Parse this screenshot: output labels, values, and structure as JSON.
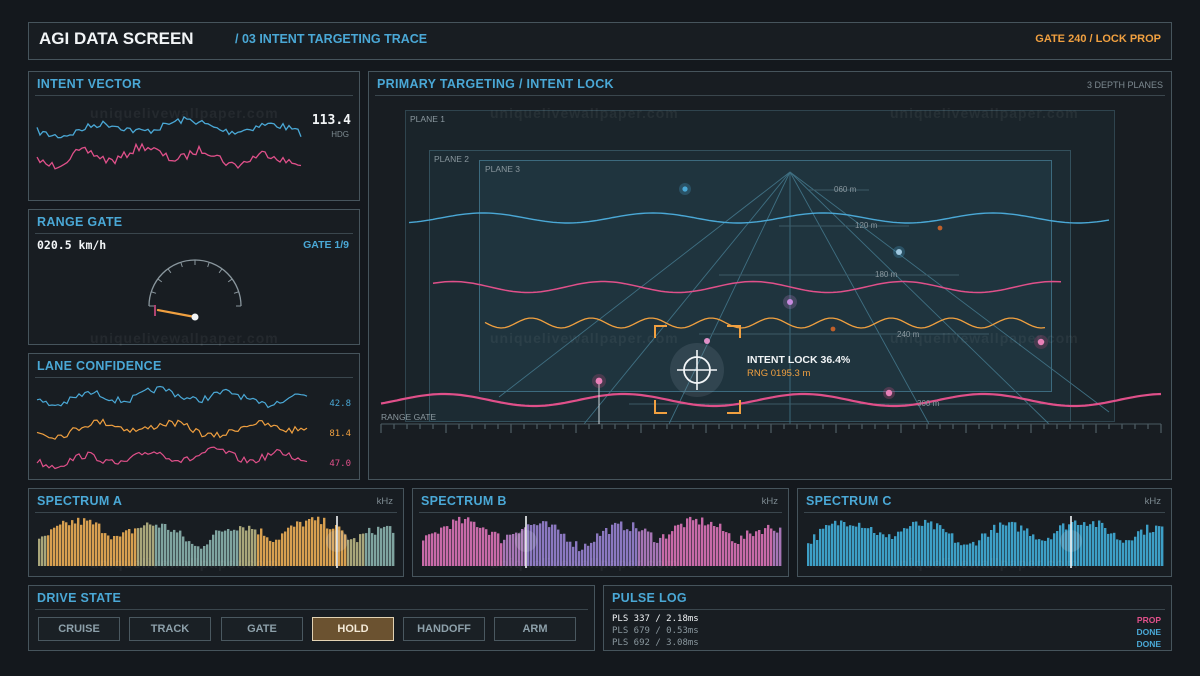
{
  "header": {
    "title": "AGI DATA SCREEN",
    "subtitle": "/ 03 INTENT TARGETING TRACE",
    "status": "GATE 240 / LOCK PROP"
  },
  "intent_vector": {
    "title": "INTENT VECTOR",
    "value": "113.4",
    "unit": "HDG"
  },
  "range_gate": {
    "title": "RANGE GATE",
    "speed": "020.5 km/h",
    "gate": "GATE 1/9",
    "needle_fraction": 0.12
  },
  "lane_confidence": {
    "title": "LANE CONFIDENCE",
    "values": [
      "42.8",
      "81.4",
      "47.0"
    ]
  },
  "targeting": {
    "title": "PRIMARY TARGETING / INTENT LOCK",
    "planes_label": "3 DEPTH PLANES",
    "planes": [
      "PLANE 1",
      "PLANE 2",
      "PLANE 3"
    ],
    "ranges": [
      "060 m",
      "120 m",
      "180 m",
      "240 m",
      "300 m"
    ],
    "range_gate_label": "RANGE GATE",
    "lock_label": "INTENT LOCK 36.4%",
    "lock_range": "RNG 0195.3 m"
  },
  "spectra": [
    {
      "title": "SPECTRUM A",
      "unit": "kHz"
    },
    {
      "title": "SPECTRUM B",
      "unit": "kHz"
    },
    {
      "title": "SPECTRUM C",
      "unit": "kHz"
    }
  ],
  "drive_state": {
    "title": "DRIVE STATE",
    "buttons": [
      "CRUISE",
      "TRACK",
      "GATE",
      "HOLD",
      "HANDOFF",
      "ARM"
    ],
    "active": "HOLD"
  },
  "pulse_log": {
    "title": "PULSE LOG",
    "entries": [
      {
        "label": "PLS 337 / 2.18ms",
        "status": "PROP"
      },
      {
        "label": "PLS 679 / 0.53ms",
        "status": "DONE"
      },
      {
        "label": "PLS 692 / 3.08ms",
        "status": "DONE"
      }
    ]
  },
  "watermark": "uniquelivewallpaper.com",
  "colors": {
    "accent_blue": "#4aa8d6",
    "accent_orange": "#f0a040",
    "accent_pink": "#e0508a",
    "panel_border": "#46545c",
    "background": "#14181d"
  }
}
